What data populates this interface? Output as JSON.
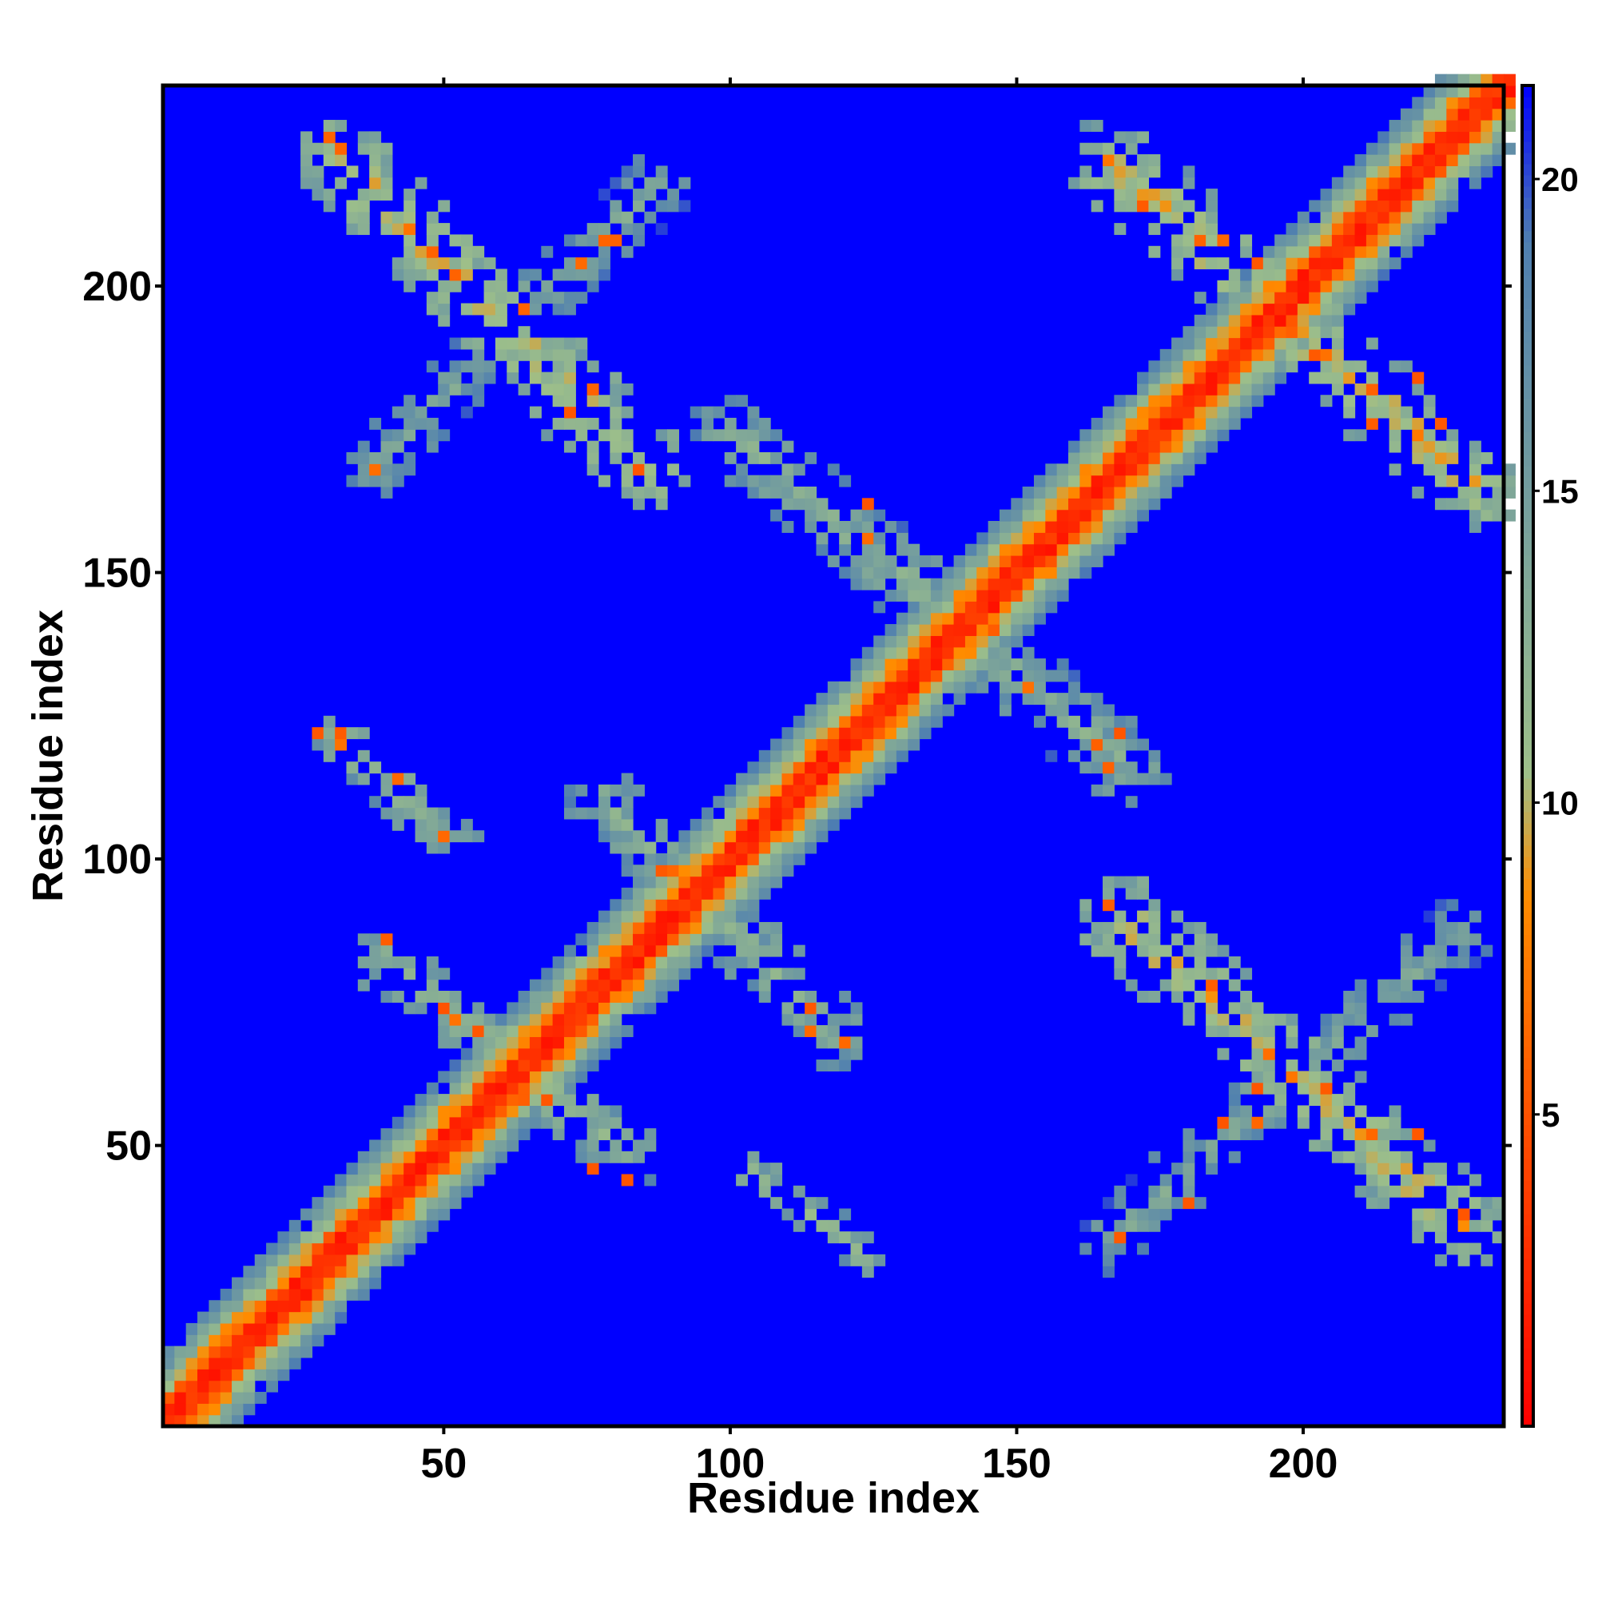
{
  "chart_data": {
    "type": "heatmap",
    "title": "",
    "xlabel": "Residue index",
    "ylabel": "Residue index",
    "xlim": [
      1,
      235
    ],
    "ylim": [
      1,
      235
    ],
    "x_ticks": [
      50,
      100,
      150,
      200
    ],
    "y_ticks": [
      50,
      100,
      150,
      200
    ],
    "colorbar": {
      "ticks": [
        5,
        10,
        15,
        20
      ],
      "range": [
        0,
        21.5
      ],
      "colors": [
        "#ff0000",
        "#ff8c00",
        "#9dbf8a",
        "#4f7fb0",
        "#0000ff"
      ],
      "stops": [
        0,
        8.5,
        10.5,
        19,
        21.5
      ]
    },
    "grid": false,
    "background_value": 21.5,
    "cell_size": 2,
    "diagonal": {
      "width": 14
    },
    "contact_regions": [
      {
        "name": "beta-pair-1-antiparallel",
        "from": [
          32,
          222
        ],
        "to": [
          85,
          168
        ],
        "width": 8,
        "core": 10
      },
      {
        "name": "beta-pair-1-crossing",
        "from": [
          37,
          168
        ],
        "to": [
          88,
          218
        ],
        "width": 6,
        "core": 14
      },
      {
        "name": "beta-pair-2-antiparallel",
        "from": [
          166,
          222
        ],
        "to": [
          230,
          165
        ],
        "width": 8,
        "core": 10
      },
      {
        "name": "beta-pair-3-antiparallel",
        "from": [
          168,
          90
        ],
        "to": [
          228,
          36
        ],
        "width": 8,
        "core": 10
      },
      {
        "name": "beta-pair-3-crossing",
        "from": [
          166,
          33
        ],
        "to": [
          228,
          88
        ],
        "width": 6,
        "core": 14
      },
      {
        "name": "hairpin-upper-left",
        "from": [
          32,
          121
        ],
        "to": [
          52,
          103
        ],
        "width": 5,
        "core": 12
      },
      {
        "name": "hairpin-lower-mid",
        "from": [
          104,
          45
        ],
        "to": [
          124,
          31
        ],
        "width": 4,
        "core": 12
      },
      {
        "name": "helix-cross-lower-a",
        "from": [
          40,
          82
        ],
        "to": [
          82,
          48
        ],
        "width": 6,
        "core": 12
      },
      {
        "name": "helix-cross-middle",
        "from": [
          78,
          110
        ],
        "to": [
          118,
          70
        ],
        "width": 7,
        "core": 13
      },
      {
        "name": "helix-cross-upper",
        "from": [
          100,
          175
        ],
        "to": [
          170,
          115
        ],
        "width": 7,
        "core": 13
      }
    ]
  }
}
